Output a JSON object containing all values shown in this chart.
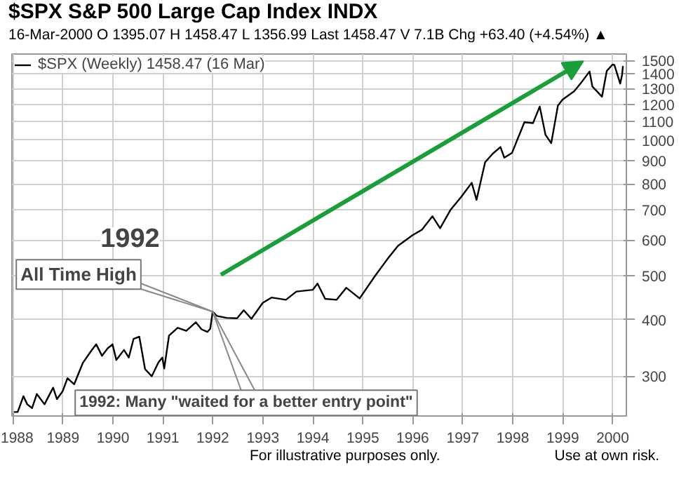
{
  "chart_data": {
    "type": "line",
    "title": "$SPX S&P 500 Large Cap Index INDX",
    "subtitle": "16-Mar-2000 O 1395.07 H 1458.47 L 1356.99 Last 1458.47 V 7.1B Chg +63.40 (+4.54%) ▲",
    "x": [
      "1988-01-08",
      "1988-02-05",
      "1988-03-18",
      "1988-04-15",
      "1988-05-20",
      "1988-06-24",
      "1988-08-19",
      "1988-10-21",
      "1988-11-18",
      "1988-12-30",
      "1989-02-03",
      "1989-03-24",
      "1989-05-26",
      "1989-07-28",
      "1989-09-01",
      "1989-10-13",
      "1989-11-24",
      "1989-12-29",
      "1990-01-26",
      "1990-03-23",
      "1990-04-27",
      "1990-06-01",
      "1990-07-13",
      "1990-08-24",
      "1990-10-12",
      "1990-11-30",
      "1990-12-28",
      "1991-01-11",
      "1991-02-15",
      "1991-04-19",
      "1991-06-21",
      "1991-08-30",
      "1991-10-11",
      "1991-11-22",
      "1991-12-13",
      "1991-12-31",
      "1992-01-31",
      "1992-04-10",
      "1992-06-26",
      "1992-08-14",
      "1992-10-09",
      "1992-12-31",
      "1993-03-05",
      "1993-06-18",
      "1993-09-03",
      "1993-12-31",
      "1994-02-04",
      "1994-04-01",
      "1994-06-24",
      "1994-09-02",
      "1994-12-09",
      "1995-03-31",
      "1995-06-30",
      "1995-09-15",
      "1995-12-29",
      "1996-03-08",
      "1996-05-24",
      "1996-07-19",
      "1996-10-04",
      "1996-12-20",
      "1997-03-07",
      "1997-04-11",
      "1997-06-13",
      "1997-08-08",
      "1997-10-03",
      "1997-10-31",
      "1997-12-26",
      "1998-03-27",
      "1998-05-29",
      "1998-07-17",
      "1998-08-28",
      "1998-10-09",
      "1998-11-27",
      "1998-12-31",
      "1999-03-26",
      "1999-05-14",
      "1999-07-16",
      "1999-08-06",
      "1999-10-15",
      "1999-11-19",
      "1999-12-31",
      "2000-01-14",
      "2000-02-25",
      "2000-03-10",
      "2000-03-16"
    ],
    "series": [
      {
        "name": "$SPX (Weekly) 1458.47 (16 Mar)",
        "color": "#000000",
        "values": [
          250,
          250,
          271,
          260,
          255,
          274,
          260,
          283,
          267,
          278,
          297,
          288,
          321,
          342,
          353,
          333,
          346,
          353,
          326,
          343,
          330,
          363,
          367,
          311,
          300,
          322,
          330,
          312,
          369,
          384,
          378,
          395,
          381,
          376,
          382,
          417,
          408,
          404,
          403,
          420,
          402,
          436,
          448,
          443,
          462,
          466,
          481,
          445,
          443,
          471,
          446,
          500,
          545,
          583,
          615,
          633,
          678,
          638,
          701,
          748,
          804,
          737,
          893,
          933,
          965,
          914,
          936,
          1095,
          1090,
          1186,
          1027,
          984,
          1192,
          1229,
          1282,
          1337,
          1418,
          1313,
          1247,
          1422,
          1469,
          1465,
          1333,
          1395,
          1458
        ]
      }
    ],
    "xlim": [
      "1987-12-25",
      "2000-04-10"
    ],
    "xticks": [
      "1988",
      "1989",
      "1990",
      "1991",
      "1992",
      "1993",
      "1994",
      "1995",
      "1996",
      "1997",
      "1998",
      "1999",
      "2000"
    ],
    "ylim": [
      245,
      1550
    ],
    "yticks": [
      300,
      400,
      500,
      600,
      700,
      800,
      900,
      1000,
      1100,
      1200,
      1300,
      1400,
      1500
    ],
    "log": "y",
    "grid": true,
    "legend": "top left",
    "marker": "none",
    "line_style": "solid",
    "annotations": [
      {
        "text": "1992"
      },
      {
        "text": "All Time High",
        "x": "1991-12-31",
        "y": 417
      },
      {
        "text": "1992: Many \"waited for a better entry point\"",
        "x": "1991-12-31",
        "y": 417
      },
      {
        "text": "For illustrative purposes only."
      },
      {
        "text": "Use at own risk."
      }
    ]
  }
}
